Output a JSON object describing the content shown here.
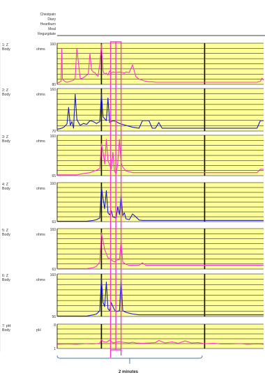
{
  "event_labels": [
    "Chestpain",
    "Diary",
    "Heartburn",
    "Meal",
    "Regurgitate"
  ],
  "scale_bar_label": "2 minutes",
  "colors": {
    "background": "#ffff99",
    "magenta": "#ff33cc",
    "blue": "#1a1acc",
    "grid": "#000000",
    "highlight": "#ff33cc"
  },
  "chart_data": {
    "type": "line",
    "x_unit": "minutes",
    "x_range": [
      0,
      6.3
    ],
    "scale_bar_minutes": 2,
    "time_markers": [
      1.35,
      4.5
    ],
    "highlight_window": [
      1.63,
      1.95
    ],
    "channels": [
      {
        "label1": "1: Z",
        "label2": "Body",
        "unit": "ohms",
        "ymin": 80,
        "ymax": 160,
        "color": "magenta",
        "x": [
          0,
          0.06,
          0.12,
          0.14,
          0.16,
          0.25,
          0.3,
          0.4,
          0.5,
          0.55,
          0.6,
          0.7,
          0.75,
          0.85,
          0.9,
          0.95,
          1.0,
          1.05,
          1.1,
          1.15,
          1.2,
          1.25,
          1.3,
          1.35,
          1.4,
          1.45,
          1.5,
          1.55,
          1.6,
          1.65,
          1.7,
          1.8,
          1.9,
          2.0,
          2.05,
          2.1,
          2.2,
          2.3,
          2.4,
          2.5,
          2.7,
          2.8,
          2.9,
          3.0,
          3.1,
          3.2,
          3.4,
          3.6,
          3.8,
          4.0,
          4.2,
          4.4,
          4.5,
          4.6,
          4.8,
          5.0,
          5.2,
          5.4,
          5.6,
          5.8,
          6.0,
          6.1,
          6.2,
          6.25,
          6.3
        ],
        "y": [
          82,
          84,
          86,
          150,
          90,
          85,
          84,
          86,
          88,
          92,
          150,
          92,
          91,
          95,
          98,
          100,
          140,
          108,
          104,
          103,
          98,
          96,
          120,
          158,
          105,
          100,
          102,
          98,
          106,
          102,
          104,
          103,
          104,
          103,
          102,
          104,
          103,
          118,
          95,
          90,
          86,
          85,
          85,
          84,
          84,
          84,
          84,
          84,
          84,
          84,
          84,
          84,
          84,
          84,
          84,
          84,
          84,
          84,
          84,
          84,
          84,
          84,
          86,
          92,
          88
        ]
      },
      {
        "label1": "2: Z",
        "label2": "Body",
        "unit": "ohms",
        "ymin": 70,
        "ymax": 160,
        "color": "blue",
        "x": [
          0,
          0.1,
          0.2,
          0.3,
          0.35,
          0.4,
          0.45,
          0.5,
          0.55,
          0.6,
          0.65,
          0.7,
          0.8,
          0.9,
          1.0,
          1.1,
          1.2,
          1.3,
          1.35,
          1.4,
          1.5,
          1.55,
          1.6,
          1.7,
          1.8,
          1.9,
          2.0,
          2.1,
          2.2,
          2.3,
          2.5,
          2.6,
          2.7,
          2.8,
          2.9,
          3.0,
          3.1,
          3.2,
          3.4,
          3.6,
          3.8,
          4.0,
          4.2,
          4.4,
          4.6,
          4.8,
          5.0,
          5.2,
          5.4,
          5.6,
          5.8,
          6.0,
          6.1,
          6.2,
          6.3
        ],
        "y": [
          74,
          75,
          78,
          85,
          120,
          82,
          90,
          76,
          148,
          95,
          88,
          82,
          86,
          84,
          92,
          90,
          86,
          90,
          150,
          100,
          92,
          140,
          88,
          92,
          90,
          86,
          84,
          82,
          80,
          78,
          76,
          92,
          92,
          92,
          76,
          76,
          88,
          76,
          76,
          76,
          76,
          76,
          76,
          76,
          76,
          76,
          76,
          76,
          76,
          76,
          76,
          76,
          76,
          92,
          92
        ]
      },
      {
        "label1": "3: Z",
        "label2": "Body",
        "unit": "ohms",
        "ymin": 65,
        "ymax": 160,
        "color": "magenta",
        "x": [
          0,
          0.2,
          0.4,
          0.6,
          0.8,
          1.0,
          1.1,
          1.2,
          1.3,
          1.35,
          1.4,
          1.45,
          1.5,
          1.55,
          1.6,
          1.65,
          1.7,
          1.75,
          1.8,
          1.85,
          1.9,
          1.95,
          2.0,
          2.1,
          2.2,
          2.3,
          2.5,
          2.7,
          2.9,
          3.0,
          3.2,
          3.4,
          3.6,
          3.8,
          4.0,
          4.2,
          4.4,
          4.6,
          4.8,
          5.0,
          5.2,
          5.4,
          5.6,
          5.8,
          6.0,
          6.1,
          6.2,
          6.3
        ],
        "y": [
          67,
          67,
          67,
          67,
          70,
          72,
          75,
          78,
          82,
          140,
          120,
          92,
          150,
          100,
          90,
          80,
          120,
          75,
          70,
          95,
          150,
          95,
          85,
          76,
          74,
          72,
          72,
          72,
          72,
          72,
          72,
          72,
          72,
          72,
          72,
          72,
          72,
          72,
          72,
          72,
          72,
          72,
          72,
          72,
          72,
          72,
          80,
          80
        ]
      },
      {
        "label1": "4: Z",
        "label2": "Body",
        "unit": "ohms",
        "ymin": 63,
        "ymax": 160,
        "color": "blue",
        "x": [
          0,
          0.3,
          0.6,
          0.9,
          1.1,
          1.2,
          1.3,
          1.35,
          1.4,
          1.45,
          1.5,
          1.55,
          1.6,
          1.65,
          1.7,
          1.8,
          1.85,
          1.9,
          1.95,
          2.0,
          2.05,
          2.1,
          2.2,
          2.3,
          2.4,
          2.5,
          2.6,
          2.8,
          3.0,
          3.2,
          3.4,
          3.6,
          3.8,
          4.0,
          4.3,
          4.6,
          5.0,
          5.4,
          5.8,
          6.0,
          6.2,
          6.3
        ],
        "y": [
          64,
          64,
          64,
          64,
          66,
          68,
          72,
          150,
          120,
          95,
          140,
          85,
          80,
          90,
          75,
          72,
          100,
          80,
          130,
          78,
          85,
          70,
          68,
          82,
          75,
          67,
          66,
          66,
          66,
          66,
          66,
          66,
          66,
          66,
          66,
          66,
          66,
          66,
          66,
          66,
          66,
          66
        ]
      },
      {
        "label1": "5: Z",
        "label2": "Body",
        "unit": "ohms",
        "ymin": 63,
        "ymax": 160,
        "color": "magenta",
        "x": [
          0,
          0.3,
          0.6,
          0.9,
          1.1,
          1.2,
          1.3,
          1.35,
          1.4,
          1.45,
          1.5,
          1.55,
          1.6,
          1.65,
          1.7,
          1.75,
          1.8,
          1.9,
          1.95,
          2.0,
          2.1,
          2.2,
          2.3,
          2.5,
          2.6,
          2.7,
          2.9,
          3.0,
          3.2,
          3.4,
          3.6,
          3.8,
          4.0,
          4.3,
          4.6,
          5.0,
          5.4,
          5.8,
          6.0,
          6.2,
          6.3
        ],
        "y": [
          64,
          64,
          64,
          64,
          66,
          70,
          80,
          150,
          130,
          110,
          100,
          90,
          88,
          85,
          82,
          80,
          84,
          86,
          130,
          80,
          74,
          72,
          72,
          72,
          78,
          72,
          72,
          72,
          72,
          72,
          72,
          72,
          72,
          72,
          72,
          72,
          72,
          72,
          72,
          72,
          72
        ]
      },
      {
        "label1": "6: Z",
        "label2": "Body",
        "unit": "ohms",
        "ymin": 56,
        "ymax": 160,
        "color": "blue",
        "x": [
          0,
          0.3,
          0.6,
          0.9,
          1.1,
          1.2,
          1.3,
          1.35,
          1.4,
          1.45,
          1.5,
          1.55,
          1.6,
          1.65,
          1.7,
          1.75,
          1.8,
          1.9,
          1.95,
          2.0,
          2.1,
          2.2,
          2.3,
          2.5,
          2.7,
          2.9,
          3.1,
          3.3,
          3.6,
          4.0,
          4.3,
          4.6,
          5.0,
          5.4,
          5.8,
          6.0,
          6.2,
          6.3
        ],
        "y": [
          57,
          57,
          57,
          57,
          60,
          62,
          70,
          150,
          90,
          80,
          140,
          75,
          70,
          90,
          80,
          72,
          68,
          70,
          150,
          70,
          66,
          64,
          62,
          60,
          60,
          60,
          60,
          60,
          60,
          60,
          60,
          60,
          60,
          60,
          60,
          60,
          60,
          60
        ]
      },
      {
        "label1": "7: pH",
        "label2": "Body",
        "unit": "pH",
        "ymin": 1,
        "ymax": 8,
        "color": "magenta",
        "x": [
          0,
          0.3,
          0.6,
          0.9,
          1.1,
          1.3,
          1.35,
          1.4,
          1.5,
          1.6,
          1.7,
          1.8,
          1.9,
          2.0,
          2.1,
          2.2,
          2.3,
          2.4,
          2.6,
          2.8,
          3.0,
          3.1,
          3.3,
          3.5,
          3.7,
          3.9,
          4.1,
          4.3,
          4.5,
          4.8,
          5.0,
          5.3,
          5.6,
          5.8,
          6.0,
          6.2,
          6.3
        ],
        "y": [
          2.2,
          2.3,
          2.2,
          2.4,
          2.3,
          2.5,
          3.6,
          3.0,
          2.8,
          3.4,
          2.6,
          2.8,
          3.0,
          2.8,
          2.7,
          2.6,
          2.8,
          2.6,
          2.5,
          2.6,
          2.7,
          3.3,
          2.6,
          2.9,
          2.5,
          3.2,
          2.6,
          2.7,
          2.4,
          2.5,
          2.3,
          2.3,
          2.4,
          2.2,
          2.3,
          2.3,
          2.2
        ]
      }
    ]
  }
}
